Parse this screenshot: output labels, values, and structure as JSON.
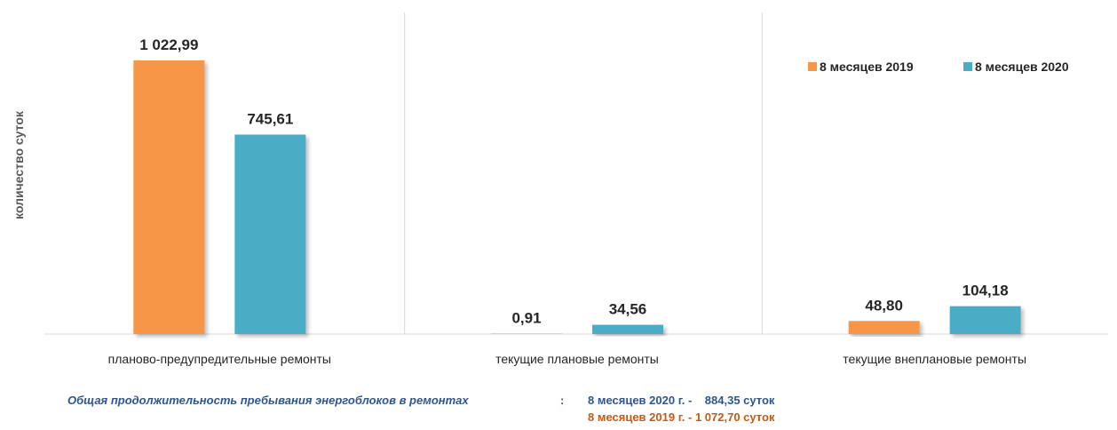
{
  "chart_data": {
    "type": "bar",
    "ylabel": "количество суток",
    "xlabel": "",
    "categories": [
      "планово-предупредительные ремонты",
      "текущие плановые ремонты",
      "текущие внеплановые ремонты"
    ],
    "series": [
      {
        "name": "8 месяцев  2019",
        "color": "#f79646",
        "values": [
          1022.99,
          0.91,
          48.8
        ],
        "labels": [
          "1 022,99",
          "0,91",
          "48,80"
        ]
      },
      {
        "name": "8 месяцев 2020",
        "color": "#4bacc6",
        "values": [
          745.61,
          34.56,
          104.18
        ],
        "labels": [
          "745,61",
          "34,56",
          "104,18"
        ]
      }
    ],
    "ylim": [
      0,
      1100
    ],
    "grid": false,
    "legend": "top-right"
  },
  "summary": {
    "label": "Общая продолжительность пребывания энергоблоков в ремонтах",
    "colon": ":",
    "line_2020": "8 месяцев 2020 г. -    884,35 суток",
    "line_2019": "8 месяцев 2019 г. - 1 072,70 суток",
    "color_2020": "#2e5592",
    "color_2019": "#c55a11"
  }
}
